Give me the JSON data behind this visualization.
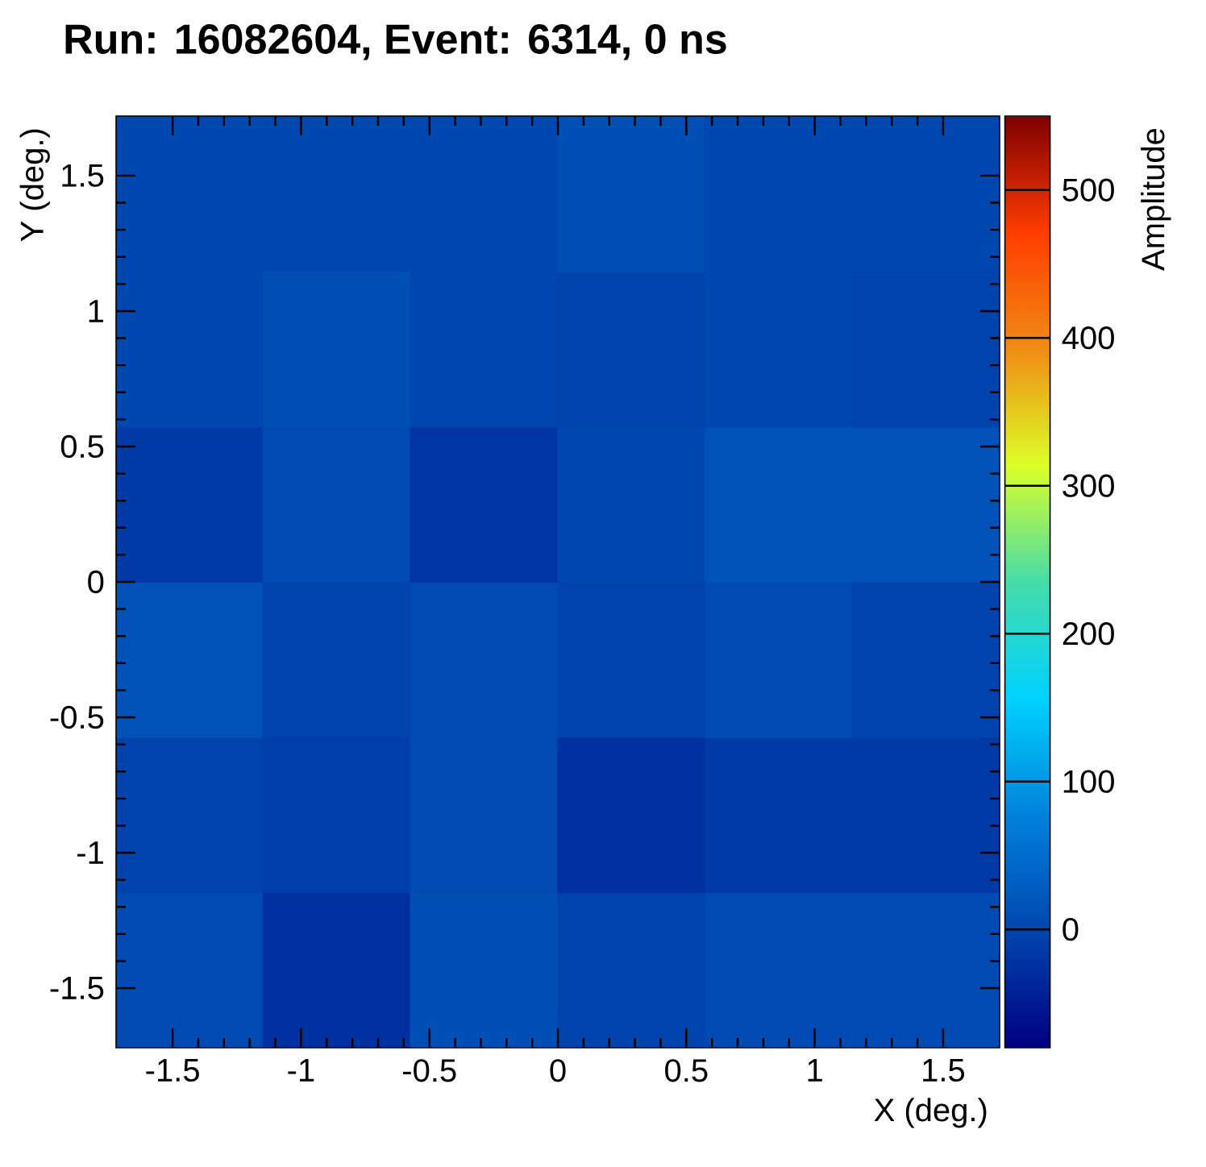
{
  "chart_data": {
    "type": "heatmap",
    "title": "Run: 16082604, Event: 6314, 0 ns",
    "xlabel": "X (deg.)",
    "ylabel": "Y (deg.)",
    "clabel": "Amplitude",
    "cells": [
      [
        0,
        0,
        0,
        10,
        0,
        0
      ],
      [
        0,
        10,
        0,
        -5,
        0,
        -5
      ],
      [
        -15,
        5,
        -20,
        0,
        15,
        15
      ],
      [
        15,
        -5,
        5,
        -5,
        5,
        -5
      ],
      [
        -5,
        -10,
        5,
        -25,
        -15,
        -15
      ],
      [
        5,
        -25,
        10,
        -5,
        5,
        5
      ]
    ],
    "clim": [
      -80,
      550
    ],
    "cticks": [
      0,
      100,
      200,
      300,
      400,
      500
    ],
    "xlim": [
      -1.72,
      1.72
    ],
    "ylim": [
      -1.72,
      1.72
    ],
    "xticks": [
      -1.5,
      -1,
      -0.5,
      0,
      0.5,
      1,
      1.5
    ],
    "yticks": [
      -1.5,
      -1,
      -0.5,
      0,
      0.5,
      1,
      1.5
    ]
  }
}
